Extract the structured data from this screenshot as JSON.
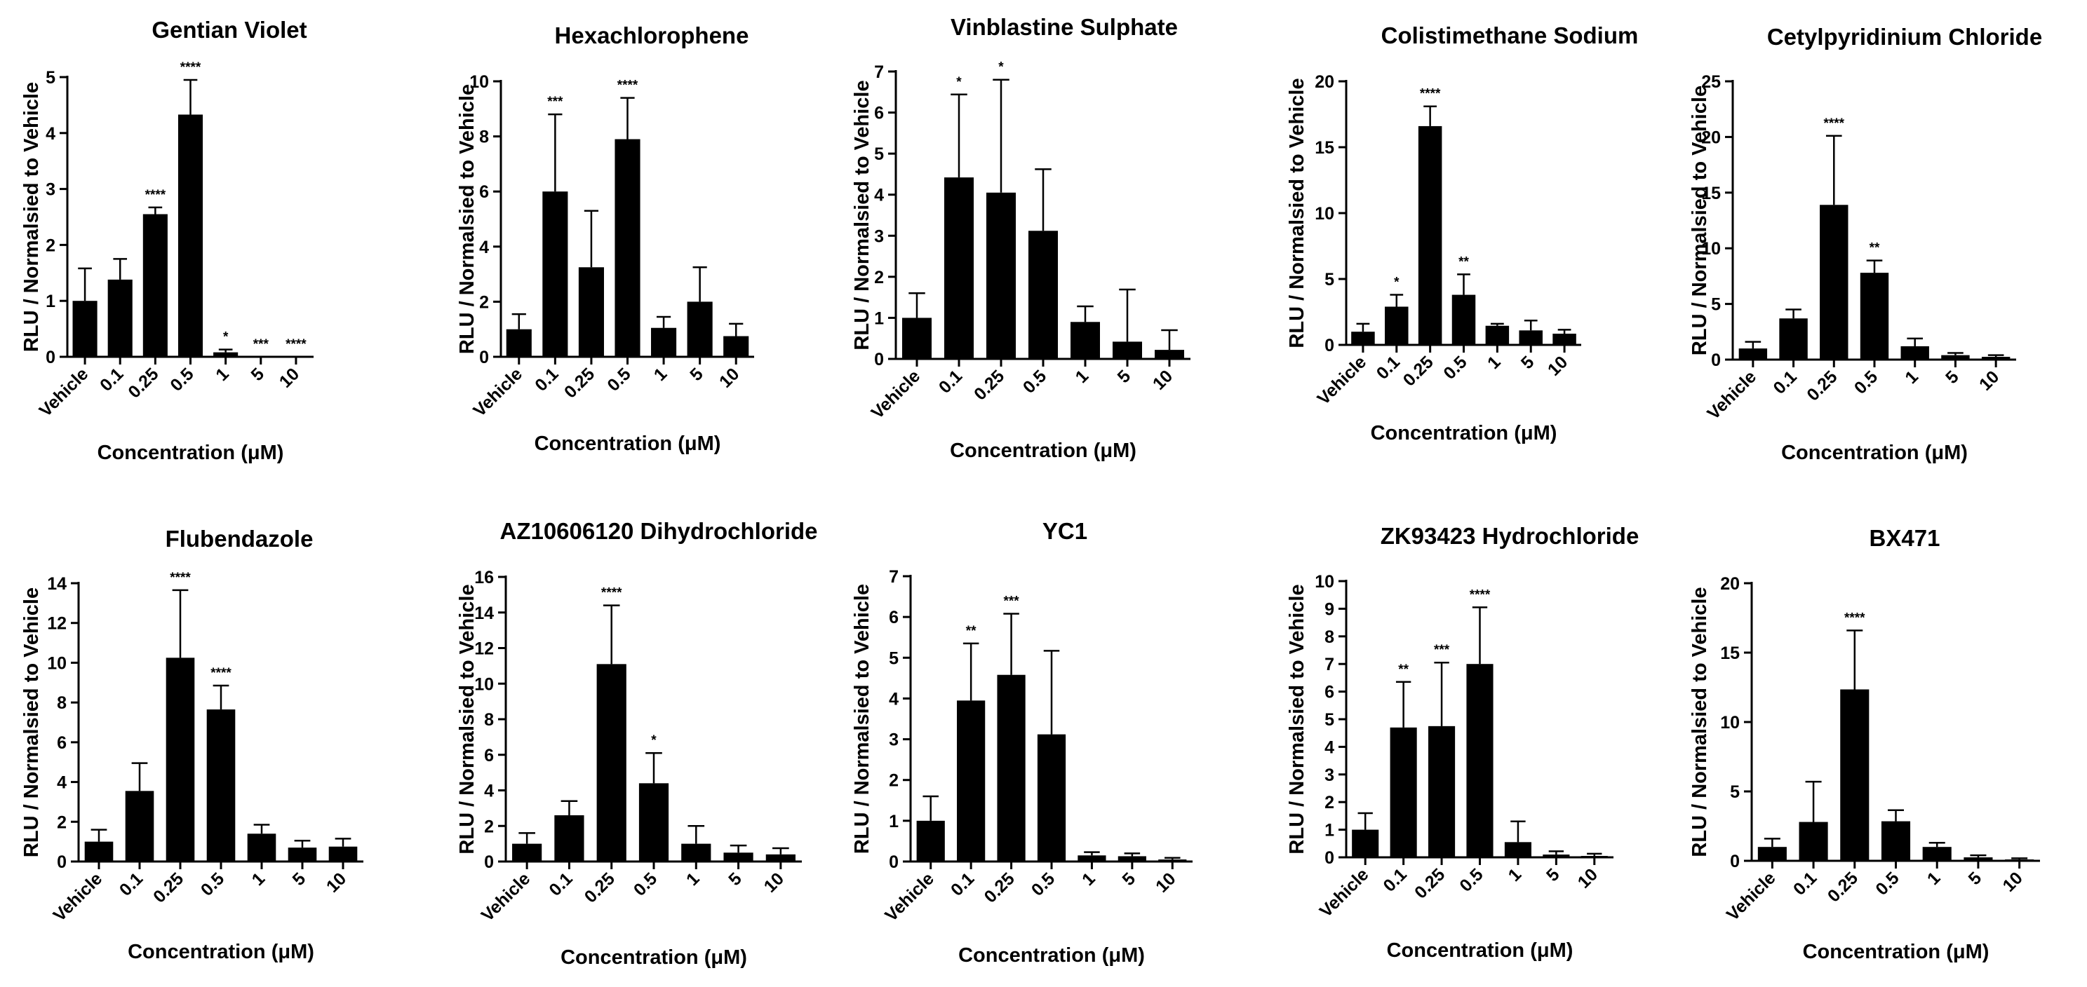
{
  "chart_data": [
    {
      "type": "bar",
      "title": "Gentian Violet",
      "xlabel": "Concentration (μM)",
      "ylabel": "RLU / Normalsied to Vehicle",
      "categories": [
        "Vehicle",
        "0.1",
        "0.25",
        "0.5",
        "1",
        "5",
        "10"
      ],
      "values": [
        1.0,
        1.38,
        2.55,
        4.33,
        0.08,
        0.0,
        0.0
      ],
      "errors": [
        0.58,
        0.37,
        0.12,
        0.62,
        0.05,
        0.0,
        0.0
      ],
      "significance": [
        "",
        "",
        "****",
        "****",
        "*",
        "***",
        "****"
      ],
      "ylim": [
        0,
        5
      ],
      "yticks": [
        0,
        1,
        2,
        3,
        4,
        5
      ]
    },
    {
      "type": "bar",
      "title": "Hexachlorophene",
      "xlabel": "Concentration (μM)",
      "ylabel": "RLU / Normalsied to Vehicle",
      "categories": [
        "Vehicle",
        "0.1",
        "0.25",
        "0.5",
        "1",
        "5",
        "10"
      ],
      "values": [
        1.0,
        6.0,
        3.25,
        7.9,
        1.05,
        2.0,
        0.75
      ],
      "errors": [
        0.55,
        2.8,
        2.05,
        1.5,
        0.4,
        1.25,
        0.45
      ],
      "significance": [
        "",
        "***",
        "",
        "****",
        "",
        "",
        ""
      ],
      "ylim": [
        0,
        10
      ],
      "yticks": [
        0,
        2,
        4,
        6,
        8,
        10
      ]
    },
    {
      "type": "bar",
      "title": "Vinblastine Sulphate",
      "xlabel": "Concentration (μM)",
      "ylabel": "RLU / Normalsied to Vehicle",
      "categories": [
        "Vehicle",
        "0.1",
        "0.25",
        "0.5",
        "1",
        "5",
        "10"
      ],
      "values": [
        1.0,
        4.42,
        4.05,
        3.12,
        0.9,
        0.42,
        0.22
      ],
      "errors": [
        0.6,
        2.02,
        2.75,
        1.5,
        0.38,
        1.27,
        0.48
      ],
      "significance": [
        "",
        "*",
        "*",
        "",
        "",
        "",
        ""
      ],
      "ylim": [
        0,
        7
      ],
      "yticks": [
        0,
        1,
        2,
        3,
        4,
        5,
        6,
        7
      ]
    },
    {
      "type": "bar",
      "title": "Colistimethane Sodium",
      "xlabel": "Concentration (μM)",
      "ylabel": "RLU / Normalsied to Vehicle",
      "categories": [
        "Vehicle",
        "0.1",
        "0.25",
        "0.5",
        "1",
        "5",
        "10"
      ],
      "values": [
        1.0,
        2.9,
        16.6,
        3.8,
        1.45,
        1.1,
        0.85
      ],
      "errors": [
        0.6,
        0.9,
        1.5,
        1.55,
        0.15,
        0.75,
        0.3
      ],
      "significance": [
        "",
        "*",
        "****",
        "**",
        "",
        "",
        ""
      ],
      "ylim": [
        0,
        20
      ],
      "yticks": [
        0,
        5,
        10,
        15,
        20
      ]
    },
    {
      "type": "bar",
      "title": "Cetylpyridinium Chloride",
      "xlabel": "Concentration (μM)",
      "ylabel": "RLU / Normalsied to Vehicle",
      "categories": [
        "Vehicle",
        "0.1",
        "0.25",
        "0.5",
        "1",
        "5",
        "10"
      ],
      "values": [
        1.0,
        3.7,
        13.9,
        7.8,
        1.2,
        0.4,
        0.25
      ],
      "errors": [
        0.6,
        0.8,
        6.2,
        1.1,
        0.7,
        0.2,
        0.15
      ],
      "significance": [
        "",
        "",
        "****",
        "**",
        "",
        "",
        ""
      ],
      "ylim": [
        0,
        25
      ],
      "yticks": [
        0,
        5,
        10,
        15,
        20,
        25
      ]
    },
    {
      "type": "bar",
      "title": "Flubendazole",
      "xlabel": "Concentration (μM)",
      "ylabel": "RLU / Normalsied to Vehicle",
      "categories": [
        "Vehicle",
        "0.1",
        "0.25",
        "0.5",
        "1",
        "5",
        "10"
      ],
      "values": [
        1.0,
        3.55,
        10.25,
        7.65,
        1.4,
        0.7,
        0.75
      ],
      "errors": [
        0.6,
        1.4,
        3.4,
        1.2,
        0.45,
        0.35,
        0.4
      ],
      "significance": [
        "",
        "",
        "****",
        "****",
        "",
        "",
        ""
      ],
      "ylim": [
        0,
        14
      ],
      "yticks": [
        0,
        2,
        4,
        6,
        8,
        10,
        12,
        14
      ]
    },
    {
      "type": "bar",
      "title": "AZ10606120 Dihydrochloride",
      "xlabel": "Concentration (μM)",
      "ylabel": "RLU / Normalsied to Vehicle",
      "categories": [
        "Vehicle",
        "0.1",
        "0.25",
        "0.5",
        "1",
        "5",
        "10"
      ],
      "values": [
        1.0,
        2.6,
        11.1,
        4.4,
        1.0,
        0.5,
        0.4
      ],
      "errors": [
        0.6,
        0.8,
        3.3,
        1.7,
        1.0,
        0.4,
        0.35
      ],
      "significance": [
        "",
        "",
        "****",
        "*",
        "",
        "",
        ""
      ],
      "ylim": [
        0,
        16
      ],
      "yticks": [
        0,
        2,
        4,
        6,
        8,
        10,
        12,
        14,
        16
      ]
    },
    {
      "type": "bar",
      "title": "YC1",
      "xlabel": "Concentration (μM)",
      "ylabel": "RLU / Normalsied to Vehicle",
      "categories": [
        "Vehicle",
        "0.1",
        "0.25",
        "0.5",
        "1",
        "5",
        "10"
      ],
      "values": [
        1.0,
        3.95,
        4.58,
        3.12,
        0.15,
        0.13,
        0.05
      ],
      "errors": [
        0.6,
        1.4,
        1.5,
        2.05,
        0.08,
        0.07,
        0.04
      ],
      "significance": [
        "",
        "**",
        "***",
        "",
        "",
        "",
        ""
      ],
      "ylim": [
        0,
        7
      ],
      "yticks": [
        0,
        1,
        2,
        3,
        4,
        5,
        6,
        7
      ]
    },
    {
      "type": "bar",
      "title": "ZK93423 Hydrochloride",
      "xlabel": "Concentration (μM)",
      "ylabel": "RLU / Normalsied to Vehicle",
      "categories": [
        "Vehicle",
        "0.1",
        "0.25",
        "0.5",
        "1",
        "5",
        "10"
      ],
      "values": [
        1.0,
        4.7,
        4.75,
        7.0,
        0.55,
        0.1,
        0.05
      ],
      "errors": [
        0.6,
        1.65,
        2.3,
        2.05,
        0.75,
        0.12,
        0.08
      ],
      "significance": [
        "",
        "**",
        "***",
        "****",
        "",
        "",
        ""
      ],
      "ylim": [
        0,
        10
      ],
      "yticks": [
        0,
        1,
        2,
        3,
        4,
        5,
        6,
        7,
        8,
        9,
        10
      ]
    },
    {
      "type": "bar",
      "title": "BX471",
      "xlabel": "Concentration (μM)",
      "ylabel": "RLU / Normalsied to Vehicle",
      "categories": [
        "Vehicle",
        "0.1",
        "0.25",
        "0.5",
        "1",
        "5",
        "10"
      ],
      "values": [
        1.0,
        2.8,
        12.35,
        2.85,
        1.0,
        0.25,
        0.1
      ],
      "errors": [
        0.6,
        2.9,
        4.25,
        0.8,
        0.3,
        0.15,
        0.08
      ],
      "significance": [
        "",
        "",
        "****",
        "",
        "",
        "",
        ""
      ],
      "ylim": [
        0,
        20
      ],
      "yticks": [
        0,
        5,
        10,
        15,
        20
      ]
    }
  ]
}
